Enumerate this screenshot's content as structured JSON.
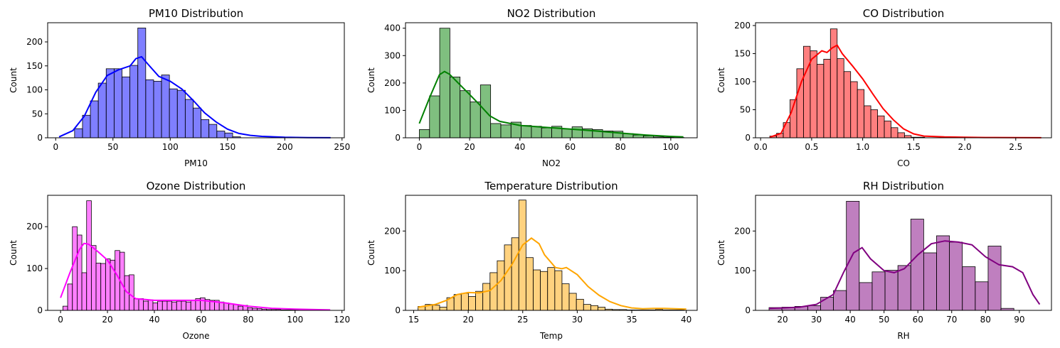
{
  "chart_data": [
    {
      "type": "bar",
      "title": "PM10 Distribution",
      "xlabel": "PM10",
      "ylabel": "Count",
      "color": "#0000ff",
      "xlim": [
        -7,
        252
      ],
      "ylim": [
        0,
        240
      ],
      "xticks": [
        0,
        50,
        100,
        150,
        200,
        250
      ],
      "yticks": [
        0,
        50,
        100,
        150,
        200
      ],
      "bins": {
        "start": 16.5,
        "width": 6.9,
        "counts": [
          19,
          47,
          77,
          114,
          144,
          144,
          127,
          151,
          229,
          121,
          118,
          131,
          102,
          99,
          80,
          62,
          38,
          28,
          14,
          10,
          2
        ]
      },
      "kde": {
        "x": [
          3,
          15,
          25,
          35,
          45,
          55,
          65,
          70,
          75,
          80,
          90,
          100,
          110,
          120,
          130,
          140,
          150,
          160,
          170,
          180,
          200,
          220,
          240
        ],
        "y": [
          2,
          15,
          45,
          95,
          130,
          142,
          150,
          165,
          169,
          155,
          128,
          118,
          102,
          78,
          52,
          33,
          18,
          9,
          5,
          3,
          1,
          0.5,
          0.2
        ]
      }
    },
    {
      "type": "bar",
      "title": "NO2 Distribution",
      "xlabel": "NO2",
      "ylabel": "Count",
      "color": "#008000",
      "xlim": [
        -5.5,
        110.5
      ],
      "ylim": [
        0,
        420
      ],
      "xticks": [
        0,
        20,
        40,
        60,
        80,
        100
      ],
      "yticks": [
        0,
        100,
        200,
        300,
        400
      ],
      "bins": {
        "start": 0,
        "width": 4.05,
        "counts": [
          30,
          153,
          400,
          222,
          172,
          131,
          193,
          52,
          47,
          57,
          45,
          42,
          36,
          42,
          32,
          40,
          33,
          30,
          25,
          24,
          15,
          10,
          7,
          3,
          2,
          1
        ]
      },
      "kde": {
        "x": [
          0,
          4,
          8,
          10,
          12,
          16,
          20,
          24,
          28,
          32,
          40,
          50,
          60,
          70,
          80,
          90,
          100,
          105
        ],
        "y": [
          52,
          145,
          230,
          242,
          232,
          195,
          158,
          120,
          80,
          60,
          45,
          38,
          32,
          25,
          17,
          10,
          5,
          3
        ]
      }
    },
    {
      "type": "bar",
      "title": "CO Distribution",
      "xlabel": "CO",
      "ylabel": "Count",
      "color": "#ff0000",
      "xlim": [
        -0.05,
        2.85
      ],
      "ylim": [
        0,
        205
      ],
      "xticks": [
        0.0,
        0.5,
        1.0,
        1.5,
        2.0,
        2.5
      ],
      "yticks": [
        0,
        50,
        100,
        150,
        200
      ],
      "bins": {
        "start": 0.09,
        "width": 0.066,
        "counts": [
          3,
          8,
          27,
          68,
          123,
          163,
          155,
          131,
          140,
          194,
          141,
          118,
          100,
          86,
          57,
          50,
          39,
          30,
          18,
          9,
          4,
          1,
          1
        ]
      },
      "kde": {
        "x": [
          0.09,
          0.2,
          0.3,
          0.4,
          0.5,
          0.6,
          0.65,
          0.7,
          0.75,
          0.8,
          0.9,
          1.0,
          1.1,
          1.2,
          1.3,
          1.4,
          1.5,
          1.6,
          1.8,
          2.0,
          2.2,
          2.5,
          2.75
        ],
        "y": [
          1,
          8,
          45,
          100,
          140,
          155,
          152,
          160,
          165,
          150,
          128,
          105,
          78,
          52,
          32,
          16,
          7,
          3,
          1.5,
          1,
          0.5,
          0.2,
          0.1
        ]
      }
    },
    {
      "type": "bar",
      "title": "Ozone Distribution",
      "xlabel": "Ozone",
      "ylabel": "Count",
      "color": "#ff00ff",
      "xlim": [
        -5.5,
        121
      ],
      "ylim": [
        0,
        275
      ],
      "xticks": [
        0,
        20,
        40,
        60,
        80,
        100,
        120
      ],
      "yticks": [
        0,
        100,
        200
      ],
      "bins": {
        "start": 1.0,
        "width": 2.02,
        "counts": [
          10,
          63,
          200,
          180,
          90,
          262,
          155,
          113,
          112,
          123,
          120,
          143,
          139,
          83,
          85,
          28,
          28,
          22,
          25,
          18,
          22,
          22,
          22,
          20,
          22,
          22,
          20,
          24,
          28,
          30,
          26,
          24,
          24,
          20,
          18,
          15,
          14,
          10,
          12,
          6,
          5,
          4,
          3,
          2,
          2,
          2,
          1,
          1,
          1,
          1
        ]
      },
      "kde": {
        "x": [
          0,
          4,
          8,
          10,
          12,
          16,
          20,
          24,
          28,
          32,
          40,
          50,
          60,
          70,
          80,
          90,
          100,
          115
        ],
        "y": [
          30,
          90,
          145,
          160,
          158,
          140,
          120,
          85,
          45,
          28,
          24,
          24,
          24,
          18,
          10,
          5,
          3,
          1
        ]
      }
    },
    {
      "type": "bar",
      "title": "Temperature Distribution",
      "xlabel": "Temp",
      "ylabel": "Count",
      "color": "#ffa500",
      "xlim": [
        14.25,
        41
      ],
      "ylim": [
        0,
        290
      ],
      "xticks": [
        15,
        20,
        25,
        30,
        35,
        40
      ],
      "yticks": [
        0,
        100,
        200
      ],
      "bins": {
        "start": 15.4,
        "width": 0.66,
        "counts": [
          10,
          15,
          13,
          8,
          32,
          40,
          43,
          35,
          48,
          68,
          95,
          125,
          165,
          183,
          278,
          133,
          102,
          98,
          108,
          100,
          67,
          43,
          28,
          15,
          12,
          8,
          3,
          2,
          2,
          1,
          1,
          1,
          1,
          2,
          1,
          1,
          1
        ]
      },
      "kde": {
        "x": [
          15.4,
          17,
          18,
          19,
          20,
          21,
          22,
          23,
          24,
          25,
          25.8,
          26.5,
          27,
          28,
          28.6,
          29,
          30,
          31,
          32,
          33,
          34,
          35,
          36,
          37,
          38,
          40
        ],
        "y": [
          8,
          15,
          25,
          40,
          45,
          44,
          50,
          75,
          115,
          165,
          182,
          168,
          140,
          108,
          105,
          108,
          90,
          60,
          38,
          22,
          12,
          6,
          4,
          5,
          5,
          3
        ]
      }
    },
    {
      "type": "bar",
      "title": "RH Distribution",
      "xlabel": "RH",
      "ylabel": "Count",
      "color": "#800080",
      "xlim": [
        12,
        99.5
      ],
      "ylim": [
        0,
        290
      ],
      "xticks": [
        20,
        30,
        40,
        50,
        60,
        70,
        80,
        90
      ],
      "yticks": [
        0,
        100,
        200
      ],
      "bins": {
        "start": 16,
        "width": 3.81,
        "counts": [
          7,
          8,
          10,
          12,
          33,
          50,
          275,
          70,
          97,
          101,
          113,
          230,
          145,
          188,
          172,
          110,
          72,
          162,
          5
        ]
      },
      "kde": {
        "x": [
          16,
          20,
          25,
          30,
          35,
          38,
          41,
          43.5,
          46,
          50,
          53,
          56,
          60,
          64,
          68,
          72,
          76,
          80,
          84,
          88,
          91,
          94,
          96
        ],
        "y": [
          5,
          6,
          8,
          15,
          40,
          95,
          145,
          158,
          130,
          100,
          95,
          105,
          140,
          168,
          175,
          172,
          165,
          135,
          115,
          110,
          95,
          40,
          15
        ]
      }
    }
  ]
}
